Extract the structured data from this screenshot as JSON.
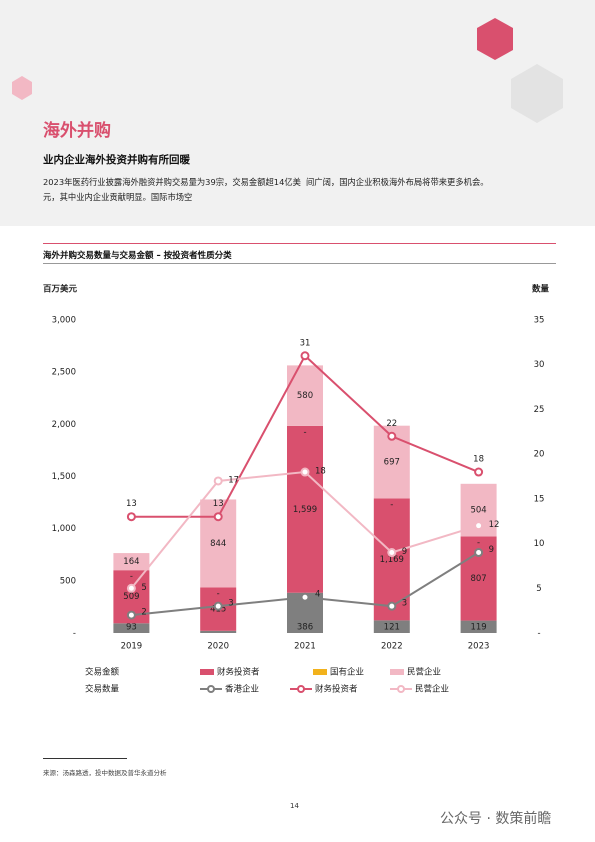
{
  "header": {
    "title": "海外并购",
    "subtitle": "业内企业海外投资并购有所回暖",
    "paragraph": [
      "2023年医药行业披露海外融资并购交易量为39宗，交易金额超14亿美元，其中业内企业贡献明显。国际市场空",
      "间广阔，国内企业积极海外布局将带来更多机会。"
    ]
  },
  "chart_heading": "海外并购交易数量与交易金额 – 按投资者性质分类",
  "chart_data": {
    "type": "bar-line",
    "y_label": "百万美元",
    "y2_label": "数量",
    "categories": [
      "2019",
      "2020",
      "2021",
      "2022",
      "2023"
    ],
    "ylim": [
      0,
      3000
    ],
    "yticks": [
      {
        "value": 0,
        "label": "-"
      },
      500,
      {
        "value": 1000,
        "label": "1,000"
      },
      {
        "value": 1500,
        "label": "1,500"
      },
      {
        "value": 2000,
        "label": "2,000"
      },
      {
        "value": 2500,
        "label": "2,500"
      },
      {
        "value": 3000,
        "label": "3,000"
      }
    ],
    "y2lim": [
      0,
      35
    ],
    "y2ticks": [
      {
        "value": 0,
        "label": "-"
      },
      5,
      10,
      15,
      20,
      25,
      30,
      35
    ],
    "legend_groups": [
      "交易金额",
      "交易数量"
    ],
    "series": [
      {
        "type": "bar",
        "color": "#7f7f7f",
        "values": [
          93,
          21,
          386,
          121,
          119
        ]
      },
      {
        "name": "财务投资者",
        "type": "bar",
        "color": "#d9506e",
        "values": [
          509,
          415,
          1599,
          1169,
          807
        ],
        "value_labels": [
          "509",
          "415",
          "1,599",
          "1,169",
          "807"
        ]
      },
      {
        "name": "国有企业",
        "type": "bar",
        "color": "#f2b21c",
        "values": [
          0,
          0,
          0,
          0,
          0
        ],
        "value_labels": [
          "-",
          "-",
          "-",
          "-",
          "-"
        ]
      },
      {
        "name": "民营企业",
        "type": "bar",
        "color": "#f2b8c4",
        "values": [
          164,
          844,
          580,
          697,
          504
        ]
      },
      {
        "name": "香港企业",
        "type": "line",
        "axis": "y2",
        "color": "#7f7f7f",
        "values": [
          2,
          3,
          4,
          3,
          9
        ]
      },
      {
        "name": "财务投资者",
        "type": "line",
        "axis": "y2",
        "color": "#d9506e",
        "values": [
          13,
          13,
          31,
          22,
          18
        ]
      },
      {
        "name": "民营企业",
        "type": "line",
        "axis": "y2",
        "color": "#f2b8c4",
        "values": [
          5,
          17,
          18,
          9,
          12
        ]
      }
    ]
  },
  "footer": {
    "source": "来源：汤森路透，投中数据及普华永道分析",
    "page": "14",
    "watermark": "公众号 · 数策前瞻"
  }
}
